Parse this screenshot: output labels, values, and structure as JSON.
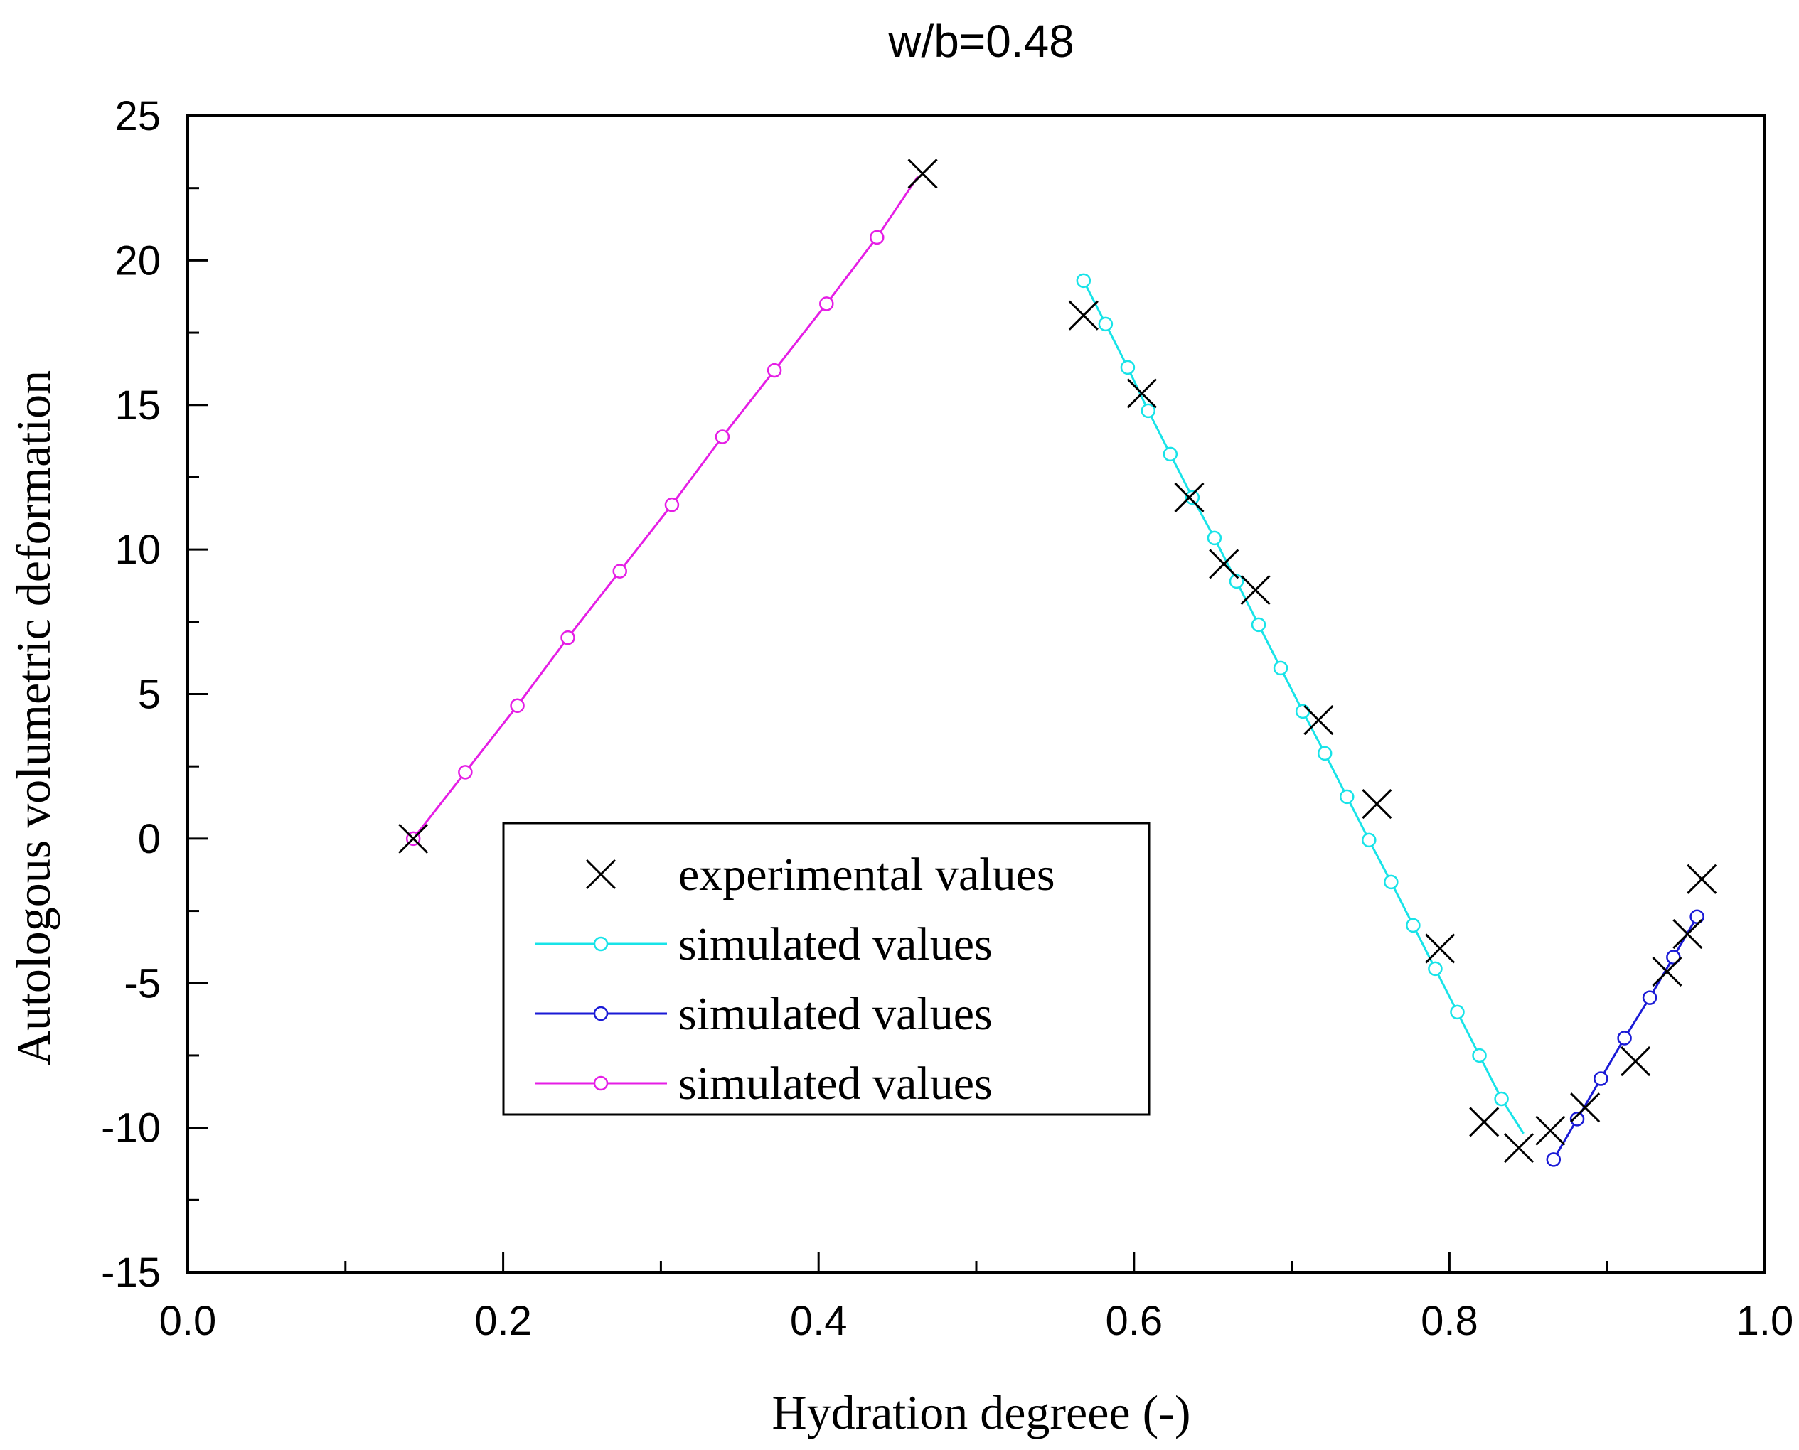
{
  "chart_data": {
    "type": "scatter",
    "title": "w/b=0.48",
    "xlabel": "Hydration degreee (-)",
    "ylabel": "Autologous volumetric deformation",
    "xlim": [
      0.0,
      1.0
    ],
    "ylim": [
      -15,
      25
    ],
    "x_ticks": [
      "0.0",
      "0.2",
      "0.4",
      "0.6",
      "0.8",
      "1.0"
    ],
    "y_ticks": [
      "25",
      "20",
      "15",
      "10",
      "5",
      "0",
      "-5",
      "-10",
      "-15"
    ],
    "grid": false,
    "legend_position": "bottom-center",
    "series": [
      {
        "name": "experimental values",
        "style": "marker-only",
        "marker": "cross",
        "color": "#000000",
        "x": [
          0.143,
          0.466,
          0.568,
          0.605,
          0.635,
          0.657,
          0.677,
          0.717,
          0.754,
          0.794,
          0.822,
          0.844,
          0.864,
          0.886,
          0.918,
          0.938,
          0.951,
          0.96
        ],
        "y": [
          0.0,
          23.0,
          18.1,
          15.4,
          11.8,
          9.5,
          8.6,
          4.1,
          1.2,
          -3.8,
          -9.8,
          -10.7,
          -10.1,
          -9.3,
          -7.7,
          -4.6,
          -3.3,
          -1.4
        ]
      },
      {
        "name": "simulated values",
        "style": "line-with-circles",
        "marker": "circle",
        "color": "#18e3e8",
        "x": [
          0.568,
          0.582,
          0.596,
          0.609,
          0.623,
          0.637,
          0.651,
          0.665,
          0.679,
          0.693,
          0.707,
          0.721,
          0.735,
          0.749,
          0.763,
          0.777,
          0.791,
          0.805,
          0.819,
          0.833,
          0.847
        ],
        "y": [
          19.3,
          17.8,
          16.3,
          14.8,
          13.3,
          11.8,
          10.4,
          8.9,
          7.4,
          5.9,
          4.4,
          2.95,
          1.45,
          -0.05,
          -1.5,
          -3.0,
          -4.5,
          -6.0,
          -7.5,
          -9.0,
          -10.2
        ],
        "marker_x": [
          0.568,
          0.582,
          0.596,
          0.609,
          0.623,
          0.637,
          0.651,
          0.665,
          0.679,
          0.693,
          0.707,
          0.721,
          0.735,
          0.749,
          0.763,
          0.777,
          0.791,
          0.805,
          0.819,
          0.833
        ],
        "marker_y": [
          19.3,
          17.8,
          16.3,
          14.8,
          13.3,
          11.8,
          10.4,
          8.9,
          7.4,
          5.9,
          4.4,
          2.95,
          1.45,
          -0.05,
          -1.5,
          -3.0,
          -4.5,
          -6.0,
          -7.5,
          -9.0
        ]
      },
      {
        "name": "simulated values",
        "style": "line-with-circles",
        "marker": "circle",
        "color": "#1a1ad6",
        "x": [
          0.866,
          0.881,
          0.896,
          0.911,
          0.927,
          0.942,
          0.957
        ],
        "y": [
          -11.1,
          -9.7,
          -8.3,
          -6.9,
          -5.5,
          -4.1,
          -2.7
        ],
        "marker_x": [
          0.866,
          0.881,
          0.896,
          0.911,
          0.927,
          0.942,
          0.957
        ],
        "marker_y": [
          -11.1,
          -9.7,
          -8.3,
          -6.9,
          -5.5,
          -4.1,
          -2.7
        ]
      },
      {
        "name": "simulated values",
        "style": "line-with-circles",
        "marker": "circle",
        "color": "#e51ee5",
        "x": [
          0.143,
          0.176,
          0.209,
          0.241,
          0.274,
          0.307,
          0.339,
          0.372,
          0.405,
          0.437,
          0.463
        ],
        "y": [
          0.0,
          2.3,
          4.6,
          6.95,
          9.25,
          11.55,
          13.9,
          16.2,
          18.5,
          20.8,
          22.9
        ],
        "marker_x": [
          0.143,
          0.176,
          0.209,
          0.241,
          0.274,
          0.307,
          0.339,
          0.372,
          0.405,
          0.437
        ],
        "marker_y": [
          0.0,
          2.3,
          4.6,
          6.95,
          9.25,
          11.55,
          13.9,
          16.2,
          18.5,
          20.8
        ]
      }
    ]
  }
}
